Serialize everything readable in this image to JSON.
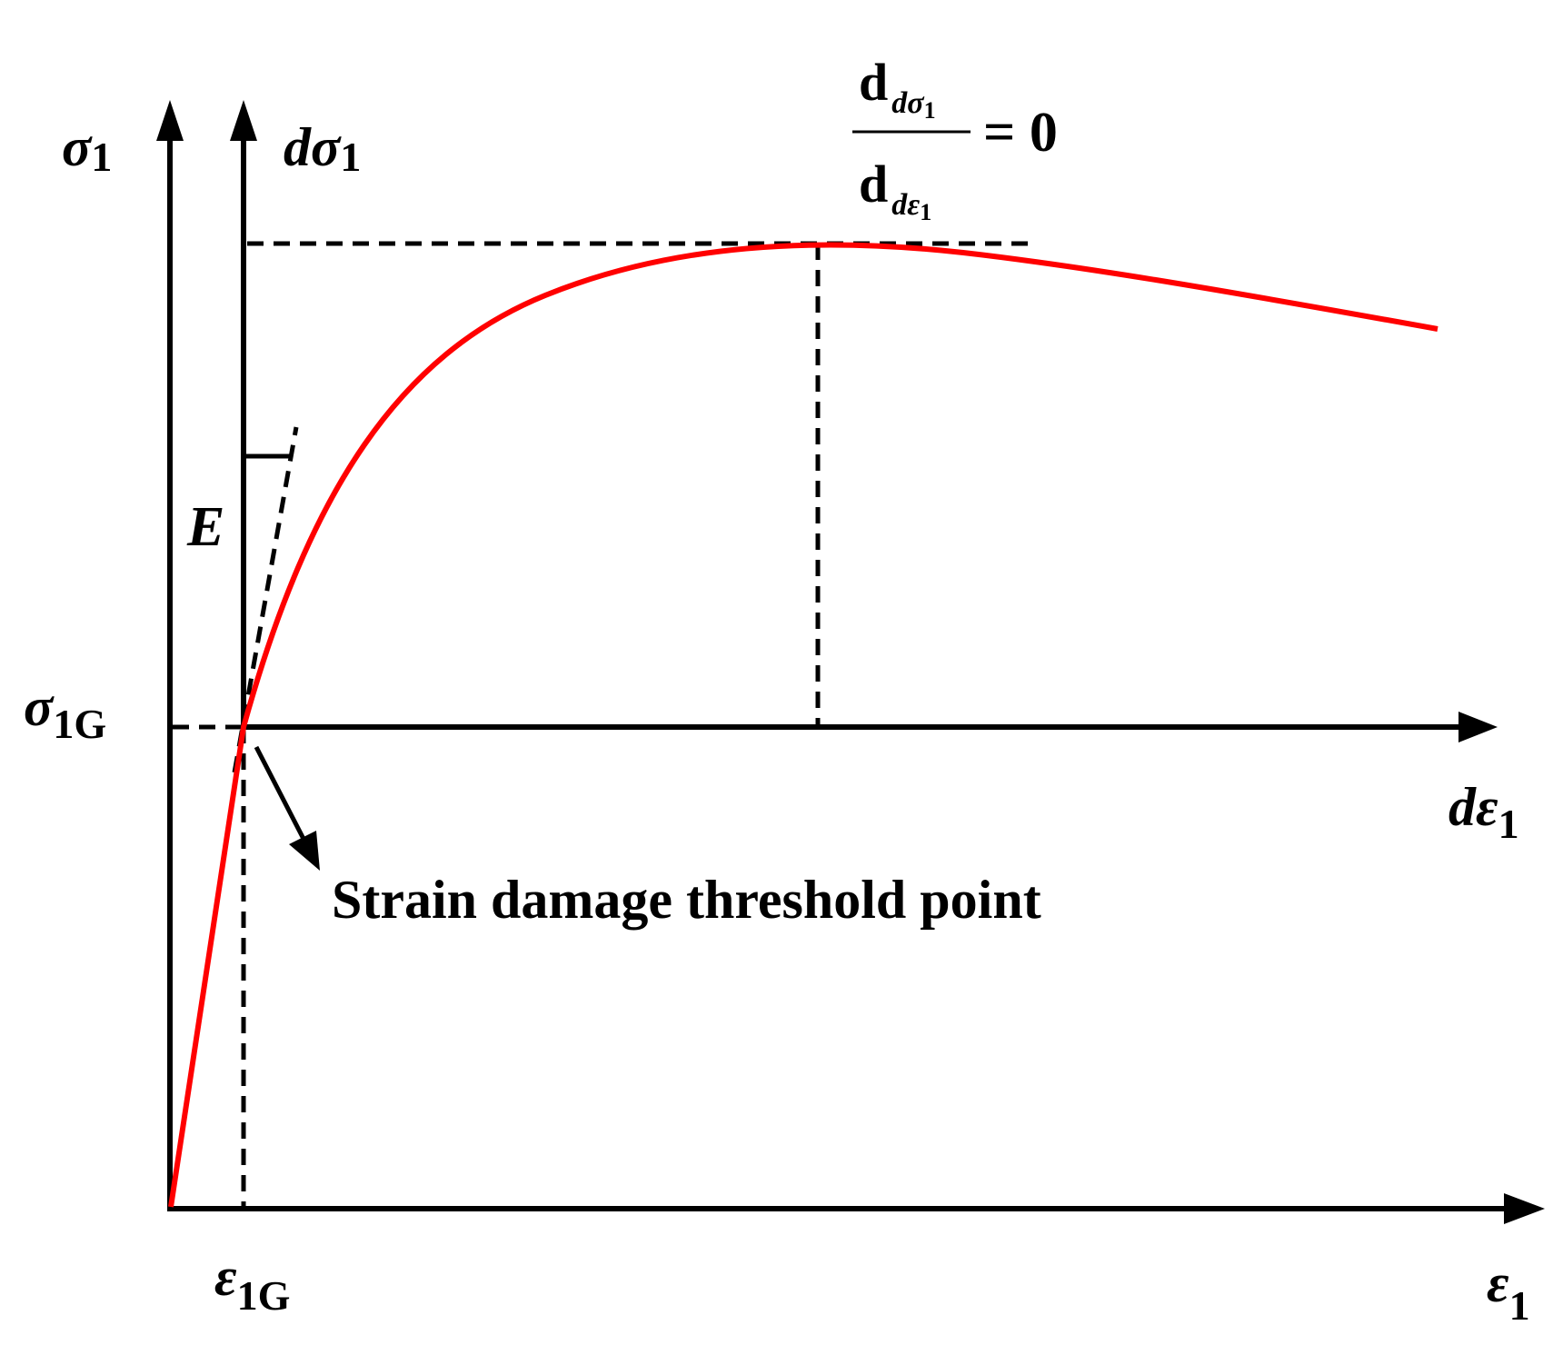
{
  "colors": {
    "curve": "#ff0000",
    "ink": "#000000",
    "background": "#ffffff"
  },
  "labels": {
    "sigma1_sym": "σ",
    "sigma1_sub": "1",
    "dsigma1_d": "d",
    "dsigma1_sym": "σ",
    "dsigma1_sub": "1",
    "sigma1G_sym": "σ",
    "sigma1G_sub": "1G",
    "E": "E",
    "deps1_d": "d",
    "deps1_sym": "ε",
    "deps1_sub": "1",
    "eps1G_sym": "ε",
    "eps1G_sub": "1G",
    "eps1_sym": "ε",
    "eps1_sub": "1",
    "threshold": "Strain damage threshold point"
  },
  "formula": {
    "num_d": "d",
    "num_sub_d": "d",
    "num_sub_sym": "σ",
    "num_sub_sub": "1",
    "den_d": "d",
    "den_sub_d": "d",
    "den_sub_sym": "ε",
    "den_sub_sub": "1",
    "rhs": "= 0"
  }
}
